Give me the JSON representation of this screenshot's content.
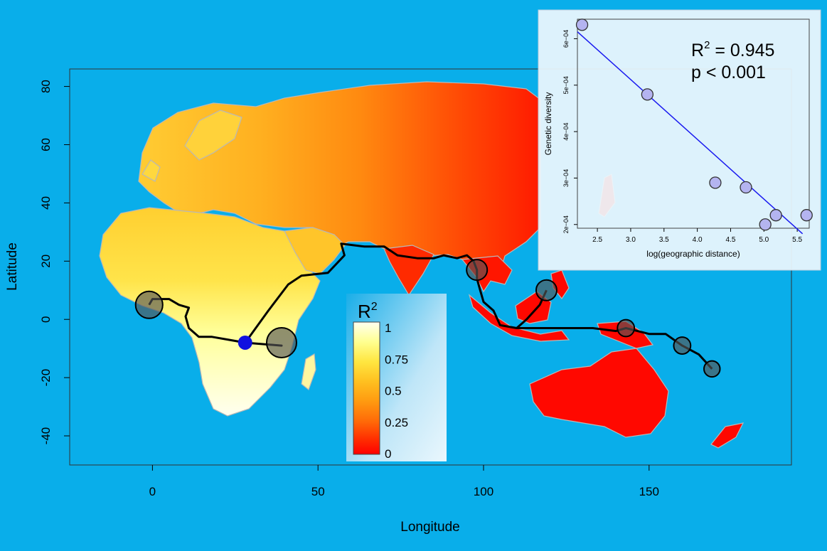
{
  "colors": {
    "background": "#09aeea",
    "plot_background": "#09aeea",
    "route_line": "#000000",
    "origin_point": "#1010e0",
    "sample_point": "#555555",
    "land_border": "#b8b8b8",
    "inset_point": "#b4b4f0",
    "inset_line": "#1a1af0"
  },
  "map": {
    "xlabel": "Longitude",
    "ylabel": "Latitude",
    "xlim": [
      -25,
      193
    ],
    "ylim": [
      -50,
      86
    ],
    "x_ticks": [
      "0",
      "50",
      "100",
      "150"
    ],
    "x_tick_values": [
      0,
      50,
      100,
      150
    ],
    "y_ticks": [
      "80",
      "60",
      "40",
      "20",
      "0",
      "-20",
      "-40"
    ],
    "y_tick_values": [
      80,
      60,
      40,
      20,
      0,
      -20,
      -40
    ],
    "origin": {
      "lon": 28,
      "lat": -8
    },
    "samples": [
      {
        "lon": -1,
        "lat": 5,
        "r2": 0.85
      },
      {
        "lon": 39,
        "lat": -8,
        "r2": 1.0
      },
      {
        "lon": 98,
        "lat": 17,
        "r2": 0.5
      },
      {
        "lon": 119,
        "lat": 10,
        "r2": 0.5
      },
      {
        "lon": 143,
        "lat": -3,
        "r2": 0.3
      },
      {
        "lon": 160,
        "lat": -9,
        "r2": 0.3
      },
      {
        "lon": 169,
        "lat": -17,
        "r2": 0.25
      }
    ],
    "route": [
      [
        -1,
        5
      ],
      [
        0,
        7
      ],
      [
        5,
        7
      ],
      [
        8,
        5
      ],
      [
        11,
        4
      ],
      [
        10,
        1
      ],
      [
        11,
        -3
      ],
      [
        14,
        -6
      ],
      [
        18,
        -6
      ],
      [
        23,
        -7
      ],
      [
        28,
        -8
      ],
      [
        28,
        -8
      ],
      [
        39,
        -9
      ],
      [
        28,
        -8
      ],
      [
        35,
        3
      ],
      [
        41,
        12
      ],
      [
        45,
        15
      ],
      [
        53,
        16
      ],
      [
        58,
        22
      ],
      [
        57,
        26
      ],
      [
        64,
        25
      ],
      [
        70,
        25
      ],
      [
        74,
        22
      ],
      [
        80,
        21
      ],
      [
        85,
        21
      ],
      [
        88,
        22
      ],
      [
        92,
        21
      ],
      [
        95,
        22
      ],
      [
        97,
        20
      ],
      [
        98,
        17
      ],
      [
        98,
        14
      ],
      [
        99,
        10
      ],
      [
        100,
        6
      ],
      [
        103,
        3
      ],
      [
        105,
        -2
      ],
      [
        110,
        -3
      ],
      [
        113,
        -3
      ],
      [
        117,
        -3
      ],
      [
        121,
        -3
      ],
      [
        127,
        -3
      ],
      [
        133,
        -3
      ],
      [
        140,
        -4
      ],
      [
        143,
        -3
      ],
      [
        150,
        -5
      ],
      [
        155,
        -5
      ],
      [
        160,
        -9
      ],
      [
        165,
        -12
      ],
      [
        169,
        -17
      ]
    ],
    "branch_borneo": [
      [
        110,
        -3
      ],
      [
        113,
        0
      ],
      [
        117,
        5
      ],
      [
        119,
        10
      ]
    ]
  },
  "legend": {
    "title": "R",
    "title_sup": "2",
    "labels": [
      "1",
      "0.75",
      "0.5",
      "0.25",
      "0"
    ],
    "stops": [
      "#fffff0",
      "#ffff90",
      "#ffe640",
      "#ffc020",
      "#ff9a10",
      "#ff6a08",
      "#ff2800",
      "#ff0000"
    ]
  },
  "inset": {
    "chart_data": {
      "type": "scatter",
      "xlabel": "log(geographic distance)",
      "ylabel": "Genetic diversity",
      "x_ticks": [
        "2.5",
        "3.0",
        "3.5",
        "4.0",
        "4.5",
        "5.0",
        "5.5"
      ],
      "x_tick_values": [
        2.5,
        3.0,
        3.5,
        4.0,
        4.5,
        5.0,
        5.5
      ],
      "y_ticks": [
        "2e−04",
        "3e−04",
        "4e−04",
        "5e−04",
        "6e−04"
      ],
      "y_tick_values": [
        0.0002,
        0.0003,
        0.0004,
        0.0005,
        0.0006
      ],
      "xlim": [
        2.2,
        5.68
      ],
      "ylim": [
        0.000192,
        0.000642
      ],
      "points": [
        {
          "x": 2.27,
          "y": 0.00063
        },
        {
          "x": 3.25,
          "y": 0.00048
        },
        {
          "x": 4.27,
          "y": 0.00029
        },
        {
          "x": 4.73,
          "y": 0.00028
        },
        {
          "x": 5.02,
          "y": 0.0002
        },
        {
          "x": 5.18,
          "y": 0.00022
        },
        {
          "x": 5.64,
          "y": 0.00022
        }
      ],
      "fit": {
        "x0": 2.2,
        "y0": 0.000615,
        "x1": 5.58,
        "y1": 0.00018
      },
      "annotation_r2": "R",
      "annotation_r2_sup": "2",
      "annotation_r2_value": " = 0.945",
      "annotation_p": "p < 0.001"
    }
  }
}
